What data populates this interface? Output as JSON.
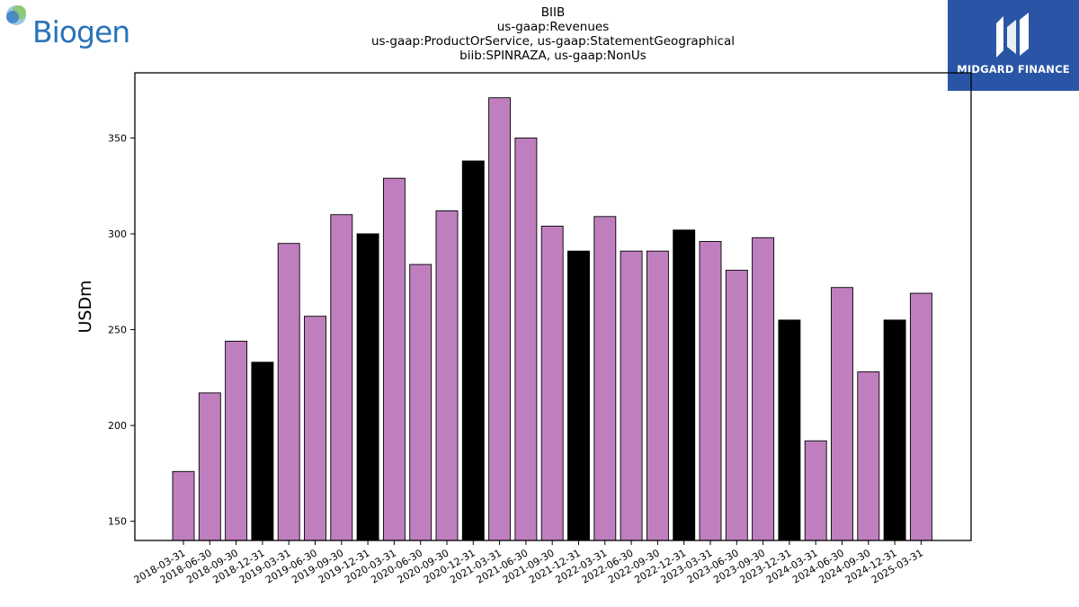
{
  "header": {
    "title_lines": [
      "BIIB",
      "us-gaap:Revenues",
      "us-gaap:ProductOrService, us-gaap:StatementGeographical",
      "biib:SPINRAZA, us-gaap:NonUs"
    ]
  },
  "logos": {
    "left": "Biogen",
    "right": "MIDGARD FINANCE"
  },
  "colors": {
    "bar_default": "#bf7fbf",
    "bar_highlight": "#000000",
    "logo_left_text": "#2a73b9",
    "logo_right_bg": "#2a55a6"
  },
  "chart_data": {
    "type": "bar",
    "title": "BIIB\nus-gaap:Revenues\nus-gaap:ProductOrService, us-gaap:StatementGeographical\nbiib:SPINRAZA, us-gaap:NonUs",
    "xlabel": "",
    "ylabel": "USDm",
    "ylim": [
      140,
      384
    ],
    "yticks": [
      150,
      200,
      250,
      300,
      350
    ],
    "grid": false,
    "categories": [
      "2018-03-31",
      "2018-06-30",
      "2018-09-30",
      "2018-12-31",
      "2019-03-31",
      "2019-06-30",
      "2019-09-30",
      "2019-12-31",
      "2020-03-31",
      "2020-06-30",
      "2020-09-30",
      "2020-12-31",
      "2021-03-31",
      "2021-06-30",
      "2021-09-30",
      "2021-12-31",
      "2022-03-31",
      "2022-06-30",
      "2022-09-30",
      "2022-12-31",
      "2023-03-31",
      "2023-06-30",
      "2023-09-30",
      "2023-12-31",
      "2024-03-31",
      "2024-06-30",
      "2024-09-30",
      "2024-12-31",
      "2025-03-31"
    ],
    "values": [
      176,
      217,
      244,
      233,
      295,
      257,
      310,
      300,
      329,
      284,
      312,
      338,
      371,
      350,
      304,
      291,
      309,
      291,
      291,
      302,
      296,
      281,
      298,
      255,
      192,
      272,
      228,
      255,
      269
    ],
    "highlight": [
      false,
      false,
      false,
      true,
      false,
      false,
      false,
      true,
      false,
      false,
      false,
      true,
      false,
      false,
      false,
      true,
      false,
      false,
      false,
      true,
      false,
      false,
      false,
      true,
      false,
      false,
      false,
      true,
      false
    ]
  }
}
